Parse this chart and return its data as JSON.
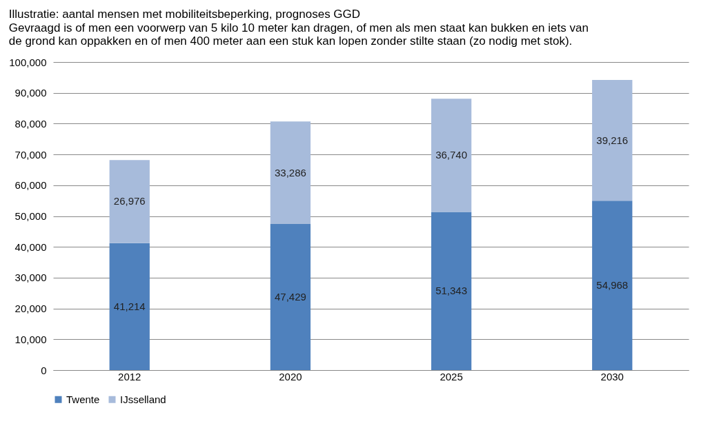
{
  "chart_data": {
    "type": "bar",
    "title": "Illustratie: aantal mensen met mobiliteitsbeperking, prognoses GGD",
    "subtitle": "Gevraagd is of men een voorwerp van 5 kilo 10 meter kan dragen, of men als men staat kan bukken en iets van de grond kan oppakken en of men 400 meter aan een stuk kan lopen zonder stilte staan (zo nodig met stok).",
    "categories": [
      "2012",
      "2020",
      "2025",
      "2030"
    ],
    "series": [
      {
        "name": "Twente",
        "color": "#4f81bd",
        "values": [
          41214,
          47429,
          51343,
          54968
        ],
        "value_labels": [
          "41,214",
          "47,429",
          "51,343",
          "54,968"
        ]
      },
      {
        "name": "IJsselland",
        "color": "#a7bbdb",
        "values": [
          26976,
          33286,
          36740,
          39216
        ],
        "value_labels": [
          "26,976",
          "33,286",
          "36,740",
          "39,216"
        ]
      }
    ],
    "stacked": true,
    "ylim": [
      0,
      100000
    ],
    "yticks": [
      0,
      {
        "value": 10000,
        "label": "10,000"
      },
      {
        "value": 20000,
        "label": "20,000"
      },
      {
        "value": 30000,
        "label": "30,000"
      },
      {
        "value": 40000,
        "label": "40,000"
      },
      {
        "value": 50000,
        "label": "50,000"
      },
      {
        "value": 60000,
        "label": "60,000"
      },
      {
        "value": 70000,
        "label": "70,000"
      },
      {
        "value": 80000,
        "label": "80,000"
      },
      {
        "value": 90000,
        "label": "90,000"
      },
      {
        "value": 100000,
        "label": "100,000"
      }
    ],
    "grid": "y",
    "legend": "bottom"
  }
}
